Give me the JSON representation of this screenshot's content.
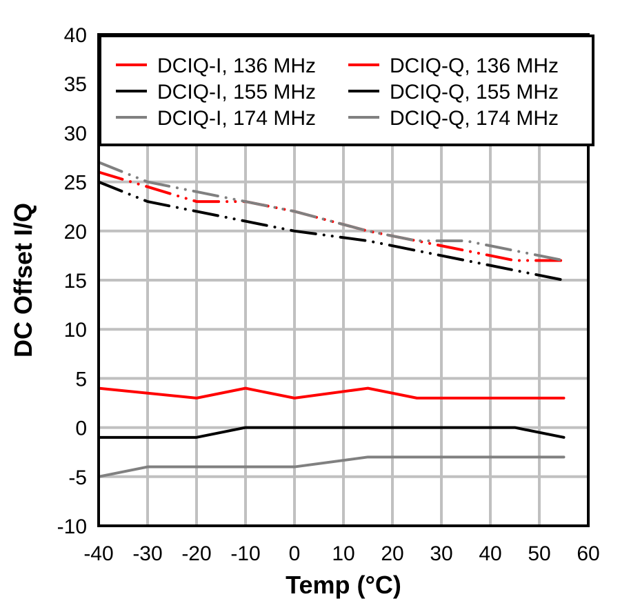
{
  "chart_data": {
    "type": "line",
    "title": "",
    "xlabel": "Temp (°C)",
    "ylabel": "DC Offset I/Q",
    "xlim": [
      -40,
      60
    ],
    "ylim": [
      -10,
      40
    ],
    "xticks": [
      -40,
      -30,
      -20,
      -10,
      0,
      10,
      20,
      30,
      40,
      50,
      60
    ],
    "yticks": [
      -10,
      -5,
      0,
      5,
      10,
      15,
      20,
      25,
      30,
      35,
      40
    ],
    "grid": true,
    "legend_position": "top",
    "x": [
      -40,
      -30,
      -20,
      -10,
      0,
      15,
      25,
      35,
      45,
      55
    ],
    "series": [
      {
        "name": "DCIQ-I, 136 MHz",
        "color": "#ff0000",
        "style": "solid",
        "values": [
          4,
          3.5,
          3,
          4,
          3,
          4,
          3,
          3,
          3,
          3
        ]
      },
      {
        "name": "DCIQ-Q, 136 MHz",
        "color": "#ff0000",
        "style": "dashdot",
        "values": [
          26,
          24.5,
          23,
          23,
          22,
          20,
          19,
          18,
          17,
          17
        ]
      },
      {
        "name": "DCIQ-I, 155 MHz",
        "color": "#000000",
        "style": "solid",
        "values": [
          -1,
          -1,
          -1,
          0,
          0,
          0,
          0,
          0,
          0,
          -1
        ]
      },
      {
        "name": "DCIQ-Q, 155 MHz",
        "color": "#000000",
        "style": "dashdot",
        "values": [
          25,
          23,
          22,
          21,
          20,
          19,
          18,
          17,
          16,
          15
        ]
      },
      {
        "name": "DCIQ-I, 174 MHz",
        "color": "#808080",
        "style": "solid",
        "values": [
          -5,
          -4,
          -4,
          -4,
          -4,
          -3,
          -3,
          -3,
          -3,
          -3
        ]
      },
      {
        "name": "DCIQ-Q, 174 MHz",
        "color": "#808080",
        "style": "dashdot",
        "values": [
          27,
          25,
          24,
          23,
          22,
          20,
          19,
          19,
          18,
          17
        ]
      }
    ]
  }
}
